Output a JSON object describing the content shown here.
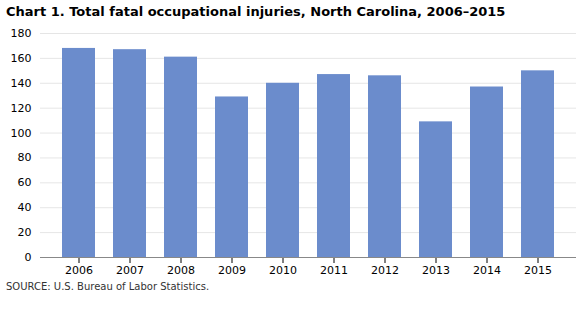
{
  "chart_data": {
    "type": "bar",
    "title": "Chart 1. Total fatal occupational injuries, North Carolina, 2006–2015",
    "categories": [
      "2006",
      "2007",
      "2008",
      "2009",
      "2010",
      "2011",
      "2012",
      "2013",
      "2014",
      "2015"
    ],
    "values": [
      168,
      167,
      161,
      129,
      140,
      147,
      146,
      109,
      137,
      150
    ],
    "color": "#6b8ccc",
    "ylim": [
      0,
      180
    ],
    "yticks": [
      0,
      20,
      40,
      60,
      80,
      100,
      120,
      140,
      160,
      180
    ],
    "grid": true,
    "annotations": [
      "SOURCE: U.S. Bureau of Labor Statistics."
    ]
  }
}
